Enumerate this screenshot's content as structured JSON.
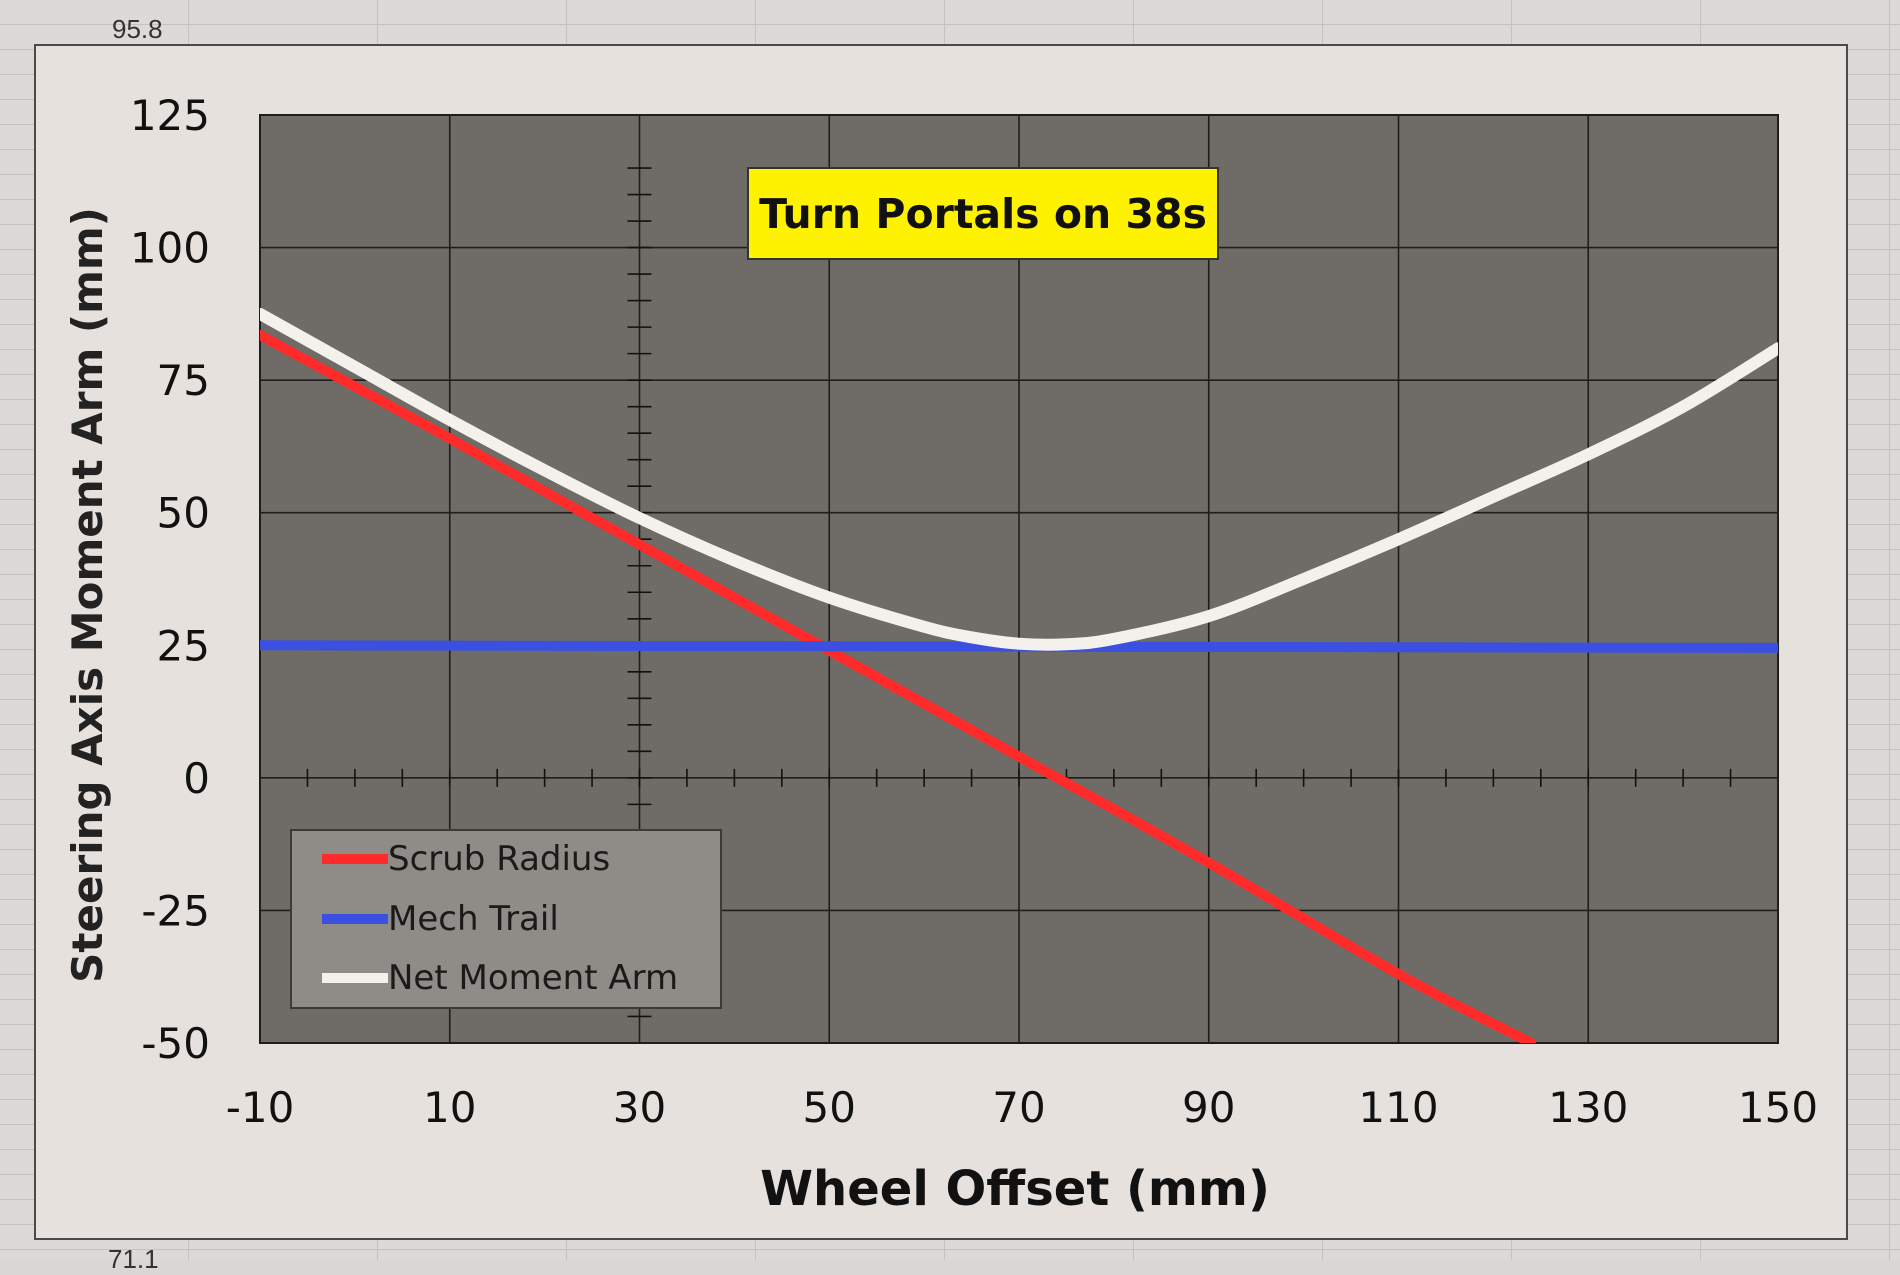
{
  "sheet": {
    "cell_top": "95.8",
    "cell_bottom": "71.1"
  },
  "chart_data": {
    "type": "line",
    "title": "Turn Portals on 38s",
    "xlabel": "Wheel Offset (mm)",
    "ylabel": "Steering Axis Moment Arm (mm)",
    "xlim": [
      -10,
      150
    ],
    "ylim": [
      -50,
      125
    ],
    "x_ticks": [
      "-10",
      "10",
      "30",
      "50",
      "70",
      "90",
      "110",
      "130",
      "150"
    ],
    "y_ticks": [
      "125",
      "100",
      "75",
      "50",
      "25",
      "0",
      "-25",
      "-50"
    ],
    "grid": true,
    "legend_position": "bottom-left",
    "series": [
      {
        "name": "Scrub Radius",
        "color": "#ff2a2a",
        "x": [
          -10,
          10,
          30,
          50,
          70,
          90,
          110,
          124
        ],
        "y": [
          83.5,
          64,
          44,
          24,
          4,
          -16,
          -37,
          -50
        ]
      },
      {
        "name": "Mech Trail",
        "color": "#3b4fe0",
        "x": [
          -10,
          150
        ],
        "y": [
          25,
          24.5
        ]
      },
      {
        "name": "Net Moment Arm",
        "color": "#f4f1ec",
        "x": [
          -10,
          0,
          10,
          20,
          30,
          40,
          50,
          60,
          65,
          70,
          75,
          80,
          90,
          100,
          110,
          120,
          130,
          140,
          150
        ],
        "y": [
          87.5,
          77.5,
          67.5,
          58,
          49,
          41,
          34,
          28.5,
          26.5,
          25.3,
          25.2,
          26.2,
          30.5,
          37.5,
          45,
          53,
          61,
          70,
          81
        ]
      }
    ]
  }
}
